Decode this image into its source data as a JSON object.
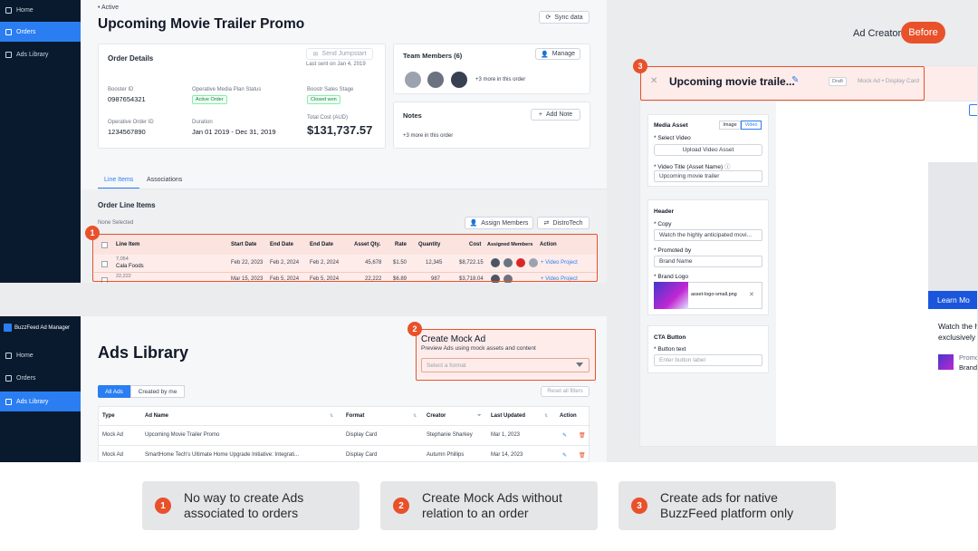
{
  "top_sidebar": {
    "items": [
      {
        "label": "Home"
      },
      {
        "label": "Orders"
      },
      {
        "label": "Ads Library"
      }
    ]
  },
  "order": {
    "status": "Active",
    "title": "Upcoming Movie Trailer Promo",
    "sync_label": "Sync data",
    "details": {
      "heading": "Order Details",
      "send_label": "Send Jumpstart",
      "last_sent": "Last sent on Jan 4, 2019",
      "booster_id_label": "Booster ID",
      "booster_id": "0987654321",
      "plan_status_label": "Operative Media Plan Status",
      "plan_status": "Active Order",
      "sales_stage_label": "Boostr Sales Stage",
      "sales_stage": "Closed won",
      "order_id_label": "Operative Order ID",
      "order_id": "1234567890",
      "duration_label": "Duration",
      "duration": "Jan 01 2019 - Dec 31, 2019",
      "total_cost_label": "Total Cost (AUD)",
      "total_cost": "$131,737.57"
    },
    "team": {
      "heading": "Team Members (6)",
      "manage_label": "Manage",
      "more": "+3 more in this order"
    },
    "notes": {
      "heading": "Notes",
      "add_label": "Add Note",
      "more": "+3 more in this order"
    },
    "tabs": [
      {
        "label": "Line Items"
      },
      {
        "label": "Associations"
      }
    ],
    "line_items": {
      "heading": "Order Line Items",
      "selected": "None Selected",
      "assign_label": "Assign Members",
      "distro_label": "DistroTech",
      "columns": [
        "Line Item",
        "Start Date",
        "End Date",
        "End Date",
        "Asset Qty.",
        "Rate",
        "Quantity",
        "Cost",
        "Assigned Members",
        "Action"
      ],
      "rows": [
        {
          "id": "7,054",
          "name": "Cala Foods",
          "start": "Feb 22, 2023",
          "end1": "Feb 2, 2024",
          "end2": "Feb 2, 2024",
          "qty": "45,678",
          "rate": "$1.50",
          "quantity": "12,345",
          "cost": "$8,722.15",
          "action": "Video Project"
        },
        {
          "id": "22,222",
          "name": "",
          "start": "Mar 15, 2023",
          "end1": "Feb 5, 2024",
          "end2": "Feb 5, 2024",
          "qty": "22,222",
          "rate": "$6.89",
          "quantity": "987",
          "cost": "$3,718.04",
          "action": "Video Project"
        }
      ]
    }
  },
  "ads_library": {
    "app_name": "BuzzFeed Ad Manager",
    "sidebar": [
      {
        "label": "Home"
      },
      {
        "label": "Orders"
      },
      {
        "label": "Ads Library"
      }
    ],
    "title": "Ads Library",
    "filters": [
      {
        "label": "All Ads"
      },
      {
        "label": "Created by me"
      }
    ],
    "reset_label": "Reset all filters",
    "mock": {
      "title": "Create Mock Ad",
      "subtitle": "Preview Ads using mock assets and content",
      "placeholder": "Select a format"
    },
    "columns": [
      "Type",
      "Ad Name",
      "Format",
      "Creator",
      "Last Updated",
      "Action"
    ],
    "rows": [
      {
        "type": "Mock Ad",
        "name": "Upcoming Movie Trailer Promo",
        "format": "Display Card",
        "creator": "Stephanie Sharkey",
        "updated": "Mar 1, 2023"
      },
      {
        "type": "Mock Ad",
        "name": "SmartHome Tech's Ultimate Home Upgrade Initiative: Integrati...",
        "format": "Display Card",
        "creator": "Autumn Phillips",
        "updated": "Mar 14, 2023"
      }
    ]
  },
  "ad_creator": {
    "label": "Ad Creator",
    "before": "Before",
    "title": "Upcoming movie traile...",
    "draft": "Draft",
    "format": "Mock Ad • Display Card",
    "media": {
      "heading": "Media Asset",
      "image_tab": "Image",
      "video_tab": "Video",
      "select_label": "Select Video",
      "upload_label": "Upload Video Asset",
      "title_label": "Video Title (Asset Name)",
      "title_value": "Upcoming movie trailer"
    },
    "header": {
      "heading": "Header",
      "copy_label": "Copy",
      "copy_value": "Watch the highly anticipated movi...",
      "promoted_label": "Promoted by",
      "promoted_value": "Brand Name",
      "logo_label": "Brand Logo",
      "logo_file": "asset-logo-small.png"
    },
    "cta": {
      "heading": "CTA Button",
      "text_label": "Button text",
      "placeholder": "Enter button label"
    },
    "preview": {
      "button": "Learn Mo",
      "line1": "Watch the h",
      "line2": "exclusively",
      "promo": "Promo",
      "brand": "Brand"
    }
  },
  "callouts": [
    {
      "number": "1",
      "text": "No way to create Ads associated to orders"
    },
    {
      "number": "2",
      "text": "Create Mock Ads without relation to an order"
    },
    {
      "number": "3",
      "text": "Create ads for native BuzzFeed platform only"
    }
  ],
  "markers": [
    "1",
    "2",
    "3"
  ],
  "colors": {
    "accent": "#2a7ef2",
    "highlight": "#e8512a",
    "sidebar": "#0a1a2e"
  }
}
